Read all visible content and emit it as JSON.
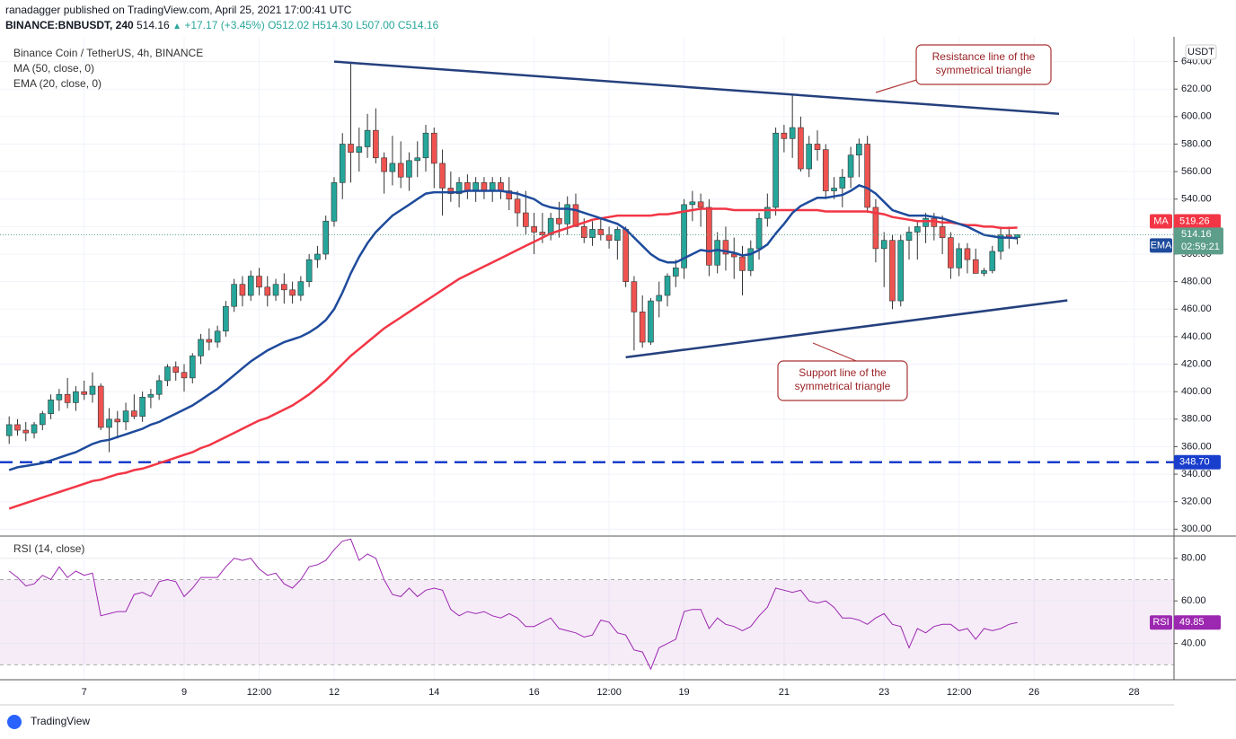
{
  "header": {
    "published": "ranadagger published on TradingView.com, April 25, 2021 17:00:41 UTC",
    "symbol": "BINANCE:BNBUSDT, 240",
    "last": "514.16",
    "arrow": "▲",
    "change": "+17.17 (+3.45%)",
    "open": "O512.02",
    "high": "H514.30",
    "low": "L507.00",
    "close": "C514.16"
  },
  "footer": "TradingView",
  "chart_data": {
    "type": "candlestick",
    "title": "Binance Coin / TetherUS, 4h, BINANCE",
    "currency": "USDT",
    "countdown": "02:59:21",
    "colors": {
      "up": "#26a69a",
      "down": "#ef5350"
    },
    "xlim": [
      -1.1,
      139.8
    ],
    "xticks": [
      {
        "value": 9,
        "label": "7"
      },
      {
        "value": 21,
        "label": "9"
      },
      {
        "value": 30,
        "label": "12:00"
      },
      {
        "value": 39,
        "label": "12"
      },
      {
        "value": 51,
        "label": "14"
      },
      {
        "value": 63,
        "label": "16"
      },
      {
        "value": 72,
        "label": "12:00"
      },
      {
        "value": 81,
        "label": "19"
      },
      {
        "value": 93,
        "label": "21"
      },
      {
        "value": 105,
        "label": "23"
      },
      {
        "value": 114,
        "label": "12:00"
      },
      {
        "value": 123,
        "label": "26"
      },
      {
        "value": 135,
        "label": "28"
      }
    ],
    "ylim": [
      295,
      658
    ],
    "yticks": [
      {
        "value": 300,
        "label": "300.00"
      },
      {
        "value": 320,
        "label": "320.00"
      },
      {
        "value": 340,
        "label": "340.00"
      },
      {
        "value": 360,
        "label": "360.00"
      },
      {
        "value": 380,
        "label": "380.00"
      },
      {
        "value": 400,
        "label": "400.00"
      },
      {
        "value": 420,
        "label": "420.00"
      },
      {
        "value": 440,
        "label": "440.00"
      },
      {
        "value": 460,
        "label": "460.00"
      },
      {
        "value": 480,
        "label": "480.00"
      },
      {
        "value": 500,
        "label": "500.00"
      },
      {
        "value": 520,
        "label": "520.00"
      },
      {
        "value": 540,
        "label": "540.00"
      },
      {
        "value": 560,
        "label": "560.00"
      },
      {
        "value": 580,
        "label": "580.00"
      },
      {
        "value": 600,
        "label": "600.00"
      },
      {
        "value": 620,
        "label": "620.00"
      },
      {
        "value": 640,
        "label": "640.00"
      }
    ],
    "grid": true,
    "ohlc": [
      [
        368,
        382,
        362,
        376
      ],
      [
        376,
        380,
        368,
        372
      ],
      [
        372,
        378,
        364,
        370
      ],
      [
        370,
        378,
        366,
        376
      ],
      [
        376,
        386,
        372,
        384
      ],
      [
        384,
        398,
        380,
        394
      ],
      [
        394,
        402,
        386,
        398
      ],
      [
        398,
        410,
        388,
        392
      ],
      [
        392,
        404,
        386,
        400
      ],
      [
        400,
        408,
        394,
        398
      ],
      [
        398,
        414,
        392,
        404
      ],
      [
        404,
        406,
        372,
        374
      ],
      [
        374,
        388,
        356,
        380
      ],
      [
        380,
        386,
        366,
        378
      ],
      [
        378,
        392,
        372,
        386
      ],
      [
        386,
        398,
        380,
        382
      ],
      [
        382,
        400,
        378,
        396
      ],
      [
        396,
        402,
        388,
        398
      ],
      [
        398,
        412,
        394,
        408
      ],
      [
        408,
        420,
        404,
        418
      ],
      [
        418,
        422,
        408,
        414
      ],
      [
        414,
        420,
        400,
        410
      ],
      [
        410,
        428,
        406,
        426
      ],
      [
        426,
        442,
        420,
        438
      ],
      [
        438,
        446,
        430,
        436
      ],
      [
        436,
        448,
        432,
        444
      ],
      [
        444,
        466,
        440,
        462
      ],
      [
        462,
        482,
        458,
        478
      ],
      [
        478,
        484,
        462,
        470
      ],
      [
        470,
        488,
        466,
        484
      ],
      [
        484,
        490,
        470,
        476
      ],
      [
        476,
        484,
        462,
        470
      ],
      [
        470,
        482,
        466,
        478
      ],
      [
        478,
        486,
        464,
        474
      ],
      [
        474,
        480,
        464,
        470
      ],
      [
        470,
        484,
        466,
        480
      ],
      [
        480,
        500,
        476,
        496
      ],
      [
        496,
        506,
        490,
        500
      ],
      [
        500,
        528,
        496,
        524
      ],
      [
        524,
        556,
        520,
        552
      ],
      [
        552,
        588,
        540,
        580
      ],
      [
        580,
        640,
        552,
        574
      ],
      [
        574,
        592,
        560,
        578
      ],
      [
        578,
        602,
        570,
        590
      ],
      [
        590,
        606,
        566,
        570
      ],
      [
        570,
        574,
        544,
        560
      ],
      [
        560,
        586,
        550,
        566
      ],
      [
        566,
        582,
        548,
        556
      ],
      [
        556,
        574,
        546,
        568
      ],
      [
        568,
        582,
        556,
        570
      ],
      [
        570,
        594,
        560,
        588
      ],
      [
        588,
        592,
        548,
        566
      ],
      [
        566,
        576,
        528,
        548
      ],
      [
        548,
        560,
        538,
        544
      ],
      [
        544,
        556,
        534,
        552
      ],
      [
        552,
        558,
        540,
        546
      ],
      [
        546,
        556,
        538,
        552
      ],
      [
        552,
        556,
        540,
        546
      ],
      [
        546,
        556,
        538,
        552
      ],
      [
        552,
        556,
        540,
        546
      ],
      [
        546,
        556,
        532,
        540
      ],
      [
        540,
        546,
        520,
        530
      ],
      [
        530,
        546,
        514,
        520
      ],
      [
        520,
        530,
        500,
        516
      ],
      [
        516,
        530,
        508,
        514
      ],
      [
        514,
        530,
        510,
        526
      ],
      [
        526,
        538,
        512,
        522
      ],
      [
        522,
        542,
        514,
        536
      ],
      [
        536,
        544,
        520,
        520
      ],
      [
        520,
        526,
        508,
        512
      ],
      [
        512,
        524,
        506,
        518
      ],
      [
        518,
        526,
        510,
        514
      ],
      [
        514,
        520,
        504,
        510
      ],
      [
        510,
        520,
        496,
        518
      ],
      [
        518,
        520,
        476,
        480
      ],
      [
        480,
        484,
        430,
        458
      ],
      [
        458,
        470,
        432,
        436
      ],
      [
        436,
        468,
        434,
        466
      ],
      [
        466,
        480,
        454,
        470
      ],
      [
        470,
        486,
        462,
        484
      ],
      [
        484,
        496,
        476,
        490
      ],
      [
        490,
        540,
        482,
        536
      ],
      [
        536,
        546,
        524,
        538
      ],
      [
        538,
        544,
        520,
        534
      ],
      [
        534,
        540,
        484,
        492
      ],
      [
        492,
        516,
        486,
        510
      ],
      [
        510,
        520,
        488,
        500
      ],
      [
        500,
        512,
        482,
        498
      ],
      [
        498,
        506,
        470,
        488
      ],
      [
        488,
        510,
        484,
        504
      ],
      [
        504,
        530,
        496,
        526
      ],
      [
        526,
        544,
        520,
        534
      ],
      [
        534,
        592,
        528,
        588
      ],
      [
        588,
        594,
        574,
        584
      ],
      [
        584,
        616,
        570,
        592
      ],
      [
        592,
        600,
        560,
        562
      ],
      [
        562,
        586,
        556,
        580
      ],
      [
        580,
        590,
        568,
        576
      ],
      [
        576,
        580,
        540,
        546
      ],
      [
        546,
        556,
        540,
        548
      ],
      [
        548,
        562,
        534,
        556
      ],
      [
        556,
        578,
        548,
        572
      ],
      [
        572,
        584,
        556,
        580
      ],
      [
        580,
        586,
        530,
        534
      ],
      [
        534,
        540,
        494,
        504
      ],
      [
        504,
        516,
        476,
        510
      ],
      [
        510,
        514,
        460,
        466
      ],
      [
        466,
        514,
        462,
        510
      ],
      [
        510,
        520,
        496,
        516
      ],
      [
        516,
        524,
        496,
        520
      ],
      [
        520,
        530,
        508,
        526
      ],
      [
        526,
        530,
        510,
        520
      ],
      [
        520,
        528,
        500,
        512
      ],
      [
        512,
        516,
        482,
        490
      ],
      [
        490,
        508,
        484,
        504
      ],
      [
        504,
        508,
        486,
        496
      ],
      [
        496,
        504,
        486,
        486
      ],
      [
        486,
        490,
        484,
        488
      ],
      [
        488,
        506,
        486,
        502
      ],
      [
        502,
        520,
        496,
        514
      ],
      [
        514,
        520,
        504,
        512
      ],
      [
        512.02,
        514.3,
        507,
        514.16
      ]
    ],
    "series": [
      {
        "name": "MA (50, close, 0)",
        "short": "MA",
        "color": "#f23645",
        "values": [
          315,
          317,
          319,
          321,
          323,
          325,
          327,
          329,
          331,
          333,
          335,
          336,
          338,
          340,
          341,
          343,
          344,
          346,
          348,
          350,
          352,
          354,
          356,
          359,
          361,
          364,
          367,
          370,
          373,
          376,
          379,
          381,
          384,
          387,
          390,
          394,
          398,
          403,
          408,
          414,
          420,
          426,
          431,
          436,
          441,
          446,
          450,
          454,
          458,
          462,
          466,
          470,
          474,
          478,
          482,
          485,
          488,
          491,
          494,
          497,
          500,
          503,
          506,
          509,
          512,
          515,
          517,
          519,
          521,
          523,
          525,
          526,
          527,
          528,
          528,
          528,
          528,
          528,
          529,
          529,
          530,
          531,
          532,
          533,
          533,
          533,
          533,
          532,
          532,
          532,
          532,
          532,
          532,
          532,
          532,
          532,
          532,
          532,
          531,
          531,
          531,
          531,
          531,
          531,
          530,
          529,
          527,
          526,
          525,
          524,
          524,
          524,
          523,
          523,
          522,
          521,
          521,
          520,
          520,
          519,
          519,
          519.26
        ]
      },
      {
        "name": "EMA (20, close, 0)",
        "short": "EMA",
        "color": "#1e4b9c",
        "values": [
          343,
          345,
          346,
          347,
          348,
          350,
          352,
          354,
          356,
          359,
          362,
          364,
          365,
          367,
          369,
          371,
          373,
          376,
          378,
          381,
          384,
          387,
          390,
          394,
          398,
          402,
          407,
          412,
          417,
          422,
          426,
          430,
          433,
          436,
          438,
          440,
          443,
          447,
          452,
          460,
          472,
          486,
          498,
          508,
          516,
          522,
          528,
          532,
          536,
          540,
          544,
          545,
          545,
          545,
          545,
          546,
          546,
          546,
          546,
          546,
          545,
          544,
          542,
          540,
          536,
          534,
          533,
          533,
          532,
          530,
          528,
          526,
          524,
          522,
          518,
          512,
          506,
          500,
          496,
          494,
          494,
          497,
          500,
          503,
          502,
          503,
          502,
          501,
          499,
          500,
          503,
          507,
          515,
          522,
          530,
          535,
          538,
          541,
          541,
          542,
          543,
          546,
          550,
          548,
          544,
          538,
          532,
          530,
          528,
          528,
          528,
          527,
          526,
          524,
          522,
          520,
          517,
          514,
          513,
          512,
          512,
          511.47
        ]
      }
    ],
    "hline": {
      "value": 348.7,
      "label": "348.70",
      "color": "#1a3ecc"
    },
    "trendlines": [
      {
        "x": [
          39,
          126
        ],
        "y": [
          640,
          602
        ]
      },
      {
        "x": [
          74,
          127
        ],
        "y": [
          425,
          466.4
        ]
      }
    ],
    "annotations": [
      {
        "lines": [
          "Resistance line of the",
          "symmetrical triangle"
        ]
      },
      {
        "lines": [
          "Support line of the",
          "symmetrical triangle"
        ]
      }
    ],
    "rsi": {
      "name": "RSI (14, close)",
      "short": "RSI",
      "color": "#9c27b0",
      "ylim": [
        23,
        90
      ],
      "band": [
        30,
        70
      ],
      "yticks": [
        {
          "value": 40,
          "label": "40.00"
        },
        {
          "value": 60,
          "label": "60.00"
        },
        {
          "value": 80,
          "label": "80.00"
        }
      ],
      "values": [
        74,
        71,
        67,
        68,
        72,
        70,
        76,
        71,
        74,
        72,
        73,
        53,
        54,
        55,
        55,
        63,
        64,
        62,
        69,
        70,
        69,
        62,
        66,
        71,
        71,
        71,
        76,
        80,
        79,
        80,
        75,
        72,
        73,
        68,
        66,
        70,
        76,
        77,
        79,
        84,
        88,
        89,
        79,
        82,
        80,
        70,
        63,
        62,
        66,
        62,
        65,
        66,
        65,
        56,
        53,
        55,
        54,
        55,
        53,
        52,
        54,
        52,
        48,
        48,
        50,
        52,
        47,
        46,
        45,
        43,
        44,
        51,
        50,
        45,
        44,
        37,
        36,
        28,
        38,
        40,
        42,
        55,
        56,
        56,
        47,
        52,
        49,
        48,
        46,
        48,
        53,
        57,
        66,
        65,
        64,
        65,
        60,
        59,
        60,
        57,
        52,
        52,
        51,
        49,
        52,
        54,
        49,
        48,
        38,
        47,
        45,
        48,
        49,
        49,
        46,
        47,
        42,
        47,
        46,
        47,
        49,
        49.85
      ]
    }
  }
}
